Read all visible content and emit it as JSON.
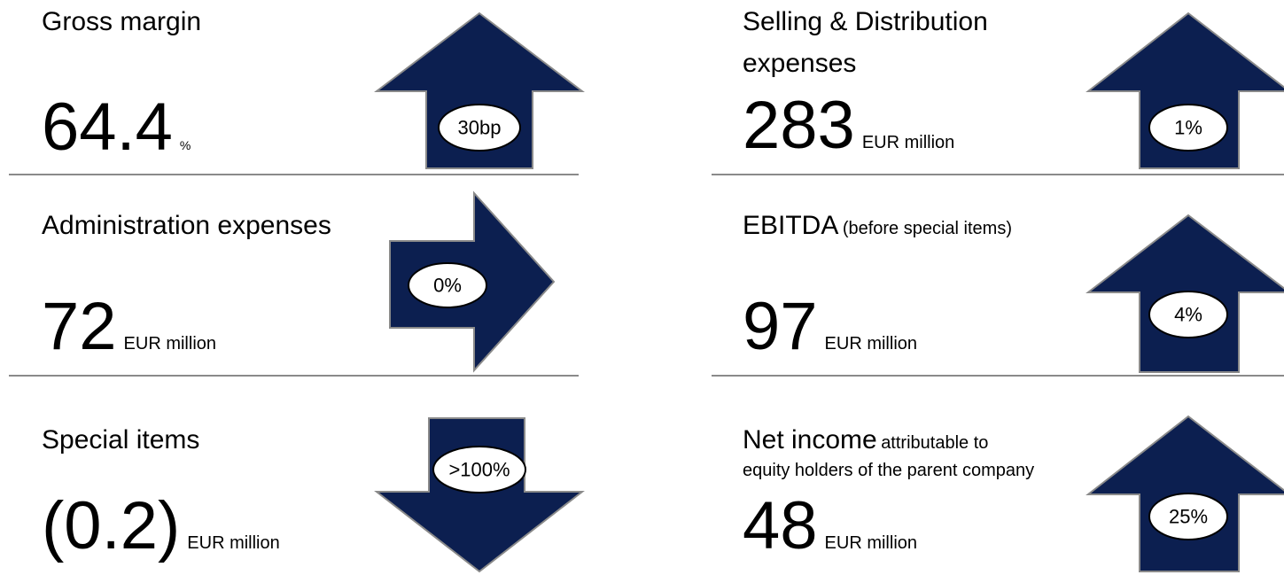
{
  "tiles": [
    {
      "title": "Gross margin",
      "value": "64.4",
      "unit": "%",
      "change": "30bp"
    },
    {
      "title": "Administration expenses",
      "value": "72",
      "unit": "EUR million",
      "change": "0%"
    },
    {
      "title": "Special items",
      "value": "(0.2)",
      "unit": "EUR million",
      "change": ">100%"
    },
    {
      "title": "Selling & Distribution expenses",
      "value": "283",
      "unit": "EUR million",
      "change": "1%"
    },
    {
      "title": "EBITDA",
      "qualifier": "(before special items)",
      "value": "97",
      "unit": "EUR million",
      "change": "4%"
    },
    {
      "title": "Net income",
      "qualifier": "attributable to",
      "note": "equity holders of the parent company",
      "value": "48",
      "unit": "EUR million",
      "change": "25%"
    }
  ]
}
